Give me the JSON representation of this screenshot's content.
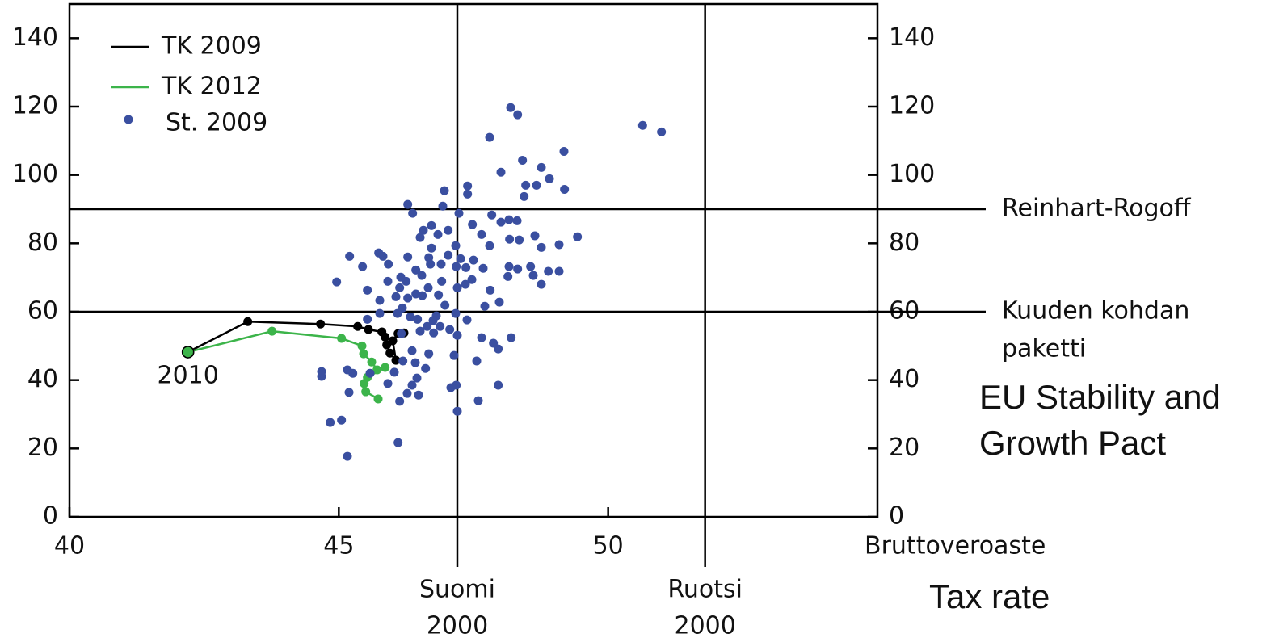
{
  "chart_data": {
    "type": "scatter",
    "xlabel": "Bruttoveroaste",
    "xlabel_en": "Tax rate",
    "xlim": [
      40,
      55
    ],
    "xticks": [
      40,
      45,
      50
    ],
    "ylim": [
      0,
      150
    ],
    "yticks": [
      0,
      20,
      40,
      60,
      80,
      100,
      120,
      140
    ],
    "y2lim": [
      0,
      150
    ],
    "y2ticks": [
      0,
      20,
      40,
      60,
      80,
      100,
      120,
      140
    ],
    "legend": "upper left",
    "hlines": [
      {
        "value": 90,
        "label": [
          "Reinhart-Rogoff"
        ]
      },
      {
        "value": 60,
        "label": [
          "Kuuden kohdan",
          "paketti"
        ]
      }
    ],
    "vlines": [
      {
        "value": 47.2,
        "label": [
          "Suomi",
          "2000"
        ]
      },
      {
        "value": 51.8,
        "label": [
          "Ruotsi",
          "2000"
        ]
      }
    ],
    "annotations": [
      "2010",
      [
        "EU Stability and",
        "Growth Pact"
      ]
    ],
    "series": [
      {
        "name": "TK 2009",
        "type": "line",
        "color": "#000000",
        "x": [
          42.2,
          43.31,
          44.66,
          45.35,
          45.55,
          45.8,
          45.86,
          45.89,
          45.95,
          46.06,
          46.0,
          46.1,
          46.21
        ],
        "values": [
          48.2,
          57.1,
          56.4,
          55.7,
          54.8,
          54.1,
          52.6,
          50.3,
          47.9,
          45.8,
          51.5,
          53.6,
          53.8
        ]
      },
      {
        "name": "TK 2012",
        "type": "line",
        "color": "#3cb44a",
        "x": [
          42.2,
          43.76,
          45.05,
          45.43,
          45.46,
          45.61,
          45.71,
          45.86,
          45.53,
          45.47,
          45.5,
          45.73
        ],
        "values": [
          48.2,
          54.3,
          52.2,
          50.0,
          47.7,
          45.3,
          43.0,
          43.7,
          40.8,
          39.0,
          36.6,
          34.5
        ]
      },
      {
        "name": "St. 2009",
        "type": "scatter",
        "color": "#3a4fa0",
        "x": [
          48.19,
          48.32,
          47.8,
          50.64,
          50.99,
          49.18,
          48.41,
          48.01,
          48.76,
          48.91,
          48.47,
          48.67,
          49.19,
          48.44,
          47.39,
          47.39,
          46.96,
          46.28,
          46.93,
          46.37,
          47.23,
          47.84,
          48.01,
          48.16,
          48.31,
          47.48,
          46.72,
          46.57,
          46.84,
          47.03,
          46.51,
          47.65,
          48.17,
          48.35,
          48.64,
          49.43,
          49.09,
          48.76,
          47.8,
          47.17,
          46.72,
          45.74,
          45.82,
          45.2,
          46.28,
          46.67,
          47.03,
          47.26,
          47.5,
          45.92,
          45.44,
          46.7,
          46.9,
          47.18,
          47.36,
          47.68,
          48.16,
          48.32,
          48.56,
          48.89,
          49.09,
          46.43,
          46.54,
          46.15,
          46.25,
          45.91,
          46.91,
          47.47,
          47.35,
          48.14,
          48.61,
          48.76,
          44.96,
          46.13,
          46.66,
          47.2,
          45.53,
          47.81,
          46.43,
          46.55,
          46.85,
          46.06,
          46.28,
          45.76,
          47.98,
          47.71,
          46.18,
          46.97,
          46.09,
          45.76,
          46.33,
          46.81,
          47.17,
          45.53,
          46.46,
          46.75,
          47.38,
          46.64,
          46.88,
          47.06,
          46.51,
          46.16,
          46.76,
          47.65,
          48.2,
          47.2,
          47.87,
          47.96,
          46.36,
          46.67,
          47.14,
          46.19,
          47.56,
          46.42,
          46.61,
          44.68,
          44.68,
          45.16,
          45.26,
          45.58,
          46.03,
          46.45,
          45.91,
          46.36,
          47.08,
          47.18,
          47.96,
          45.19,
          46.27,
          46.48,
          46.13,
          47.59,
          44.84,
          45.05,
          47.2,
          46.1,
          45.16
        ],
        "values": [
          119.7,
          117.6,
          111.0,
          114.5,
          112.6,
          106.9,
          104.3,
          100.8,
          102.2,
          98.9,
          97.0,
          97.0,
          95.8,
          93.7,
          96.8,
          94.4,
          95.4,
          91.4,
          90.9,
          88.8,
          88.8,
          88.3,
          86.2,
          86.9,
          86.6,
          85.5,
          85.2,
          83.8,
          82.6,
          83.8,
          81.7,
          82.6,
          81.2,
          81.0,
          82.2,
          81.9,
          79.6,
          78.8,
          79.3,
          79.3,
          78.6,
          77.2,
          76.2,
          76.2,
          76.0,
          75.8,
          76.5,
          75.5,
          75.1,
          73.9,
          73.2,
          73.9,
          73.9,
          73.2,
          72.9,
          72.7,
          73.2,
          72.5,
          73.2,
          71.8,
          71.8,
          72.2,
          70.6,
          70.1,
          68.9,
          68.9,
          68.9,
          69.4,
          68.0,
          70.3,
          70.6,
          68.0,
          68.7,
          67.0,
          67.0,
          67.0,
          66.3,
          66.3,
          65.2,
          64.7,
          64.9,
          64.4,
          64.0,
          63.3,
          62.8,
          61.6,
          61.1,
          61.9,
          59.5,
          59.5,
          58.5,
          58.8,
          59.5,
          57.8,
          57.8,
          57.4,
          57.6,
          55.7,
          55.7,
          54.8,
          54.3,
          53.6,
          53.8,
          52.4,
          52.4,
          53.1,
          50.8,
          49.1,
          48.6,
          47.7,
          47.2,
          45.6,
          45.6,
          45.1,
          43.4,
          42.5,
          41.1,
          43.0,
          42.0,
          42.0,
          42.3,
          40.6,
          39.0,
          38.5,
          37.8,
          38.5,
          38.5,
          36.4,
          36.1,
          35.6,
          33.8,
          34.0,
          27.6,
          28.3,
          30.9,
          21.7,
          17.7
        ]
      }
    ]
  }
}
